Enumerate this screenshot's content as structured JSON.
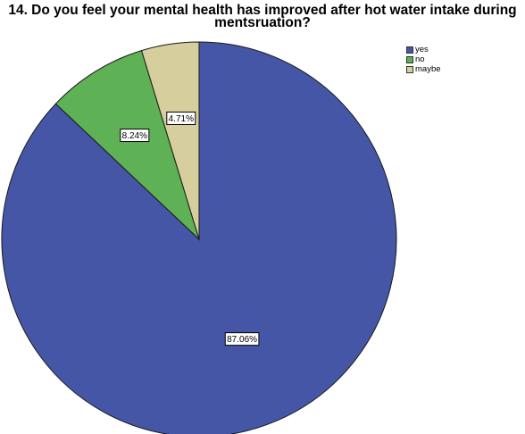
{
  "chart_data": {
    "type": "pie",
    "title_line1": "14. Do you feel your mental health has improved after hot water intake during",
    "title_line2": "mentsruation?",
    "slices": [
      {
        "label": "yes",
        "value": 87.06,
        "display": "87.06%",
        "color": "#4556a6"
      },
      {
        "label": "no",
        "value": 8.24,
        "display": "8.24%",
        "color": "#5fb155"
      },
      {
        "label": "maybe",
        "value": 4.71,
        "display": "4.71%",
        "color": "#d6cf9d"
      }
    ],
    "legend_position": "top-right",
    "start_angle": "12 o'clock, clockwise"
  }
}
